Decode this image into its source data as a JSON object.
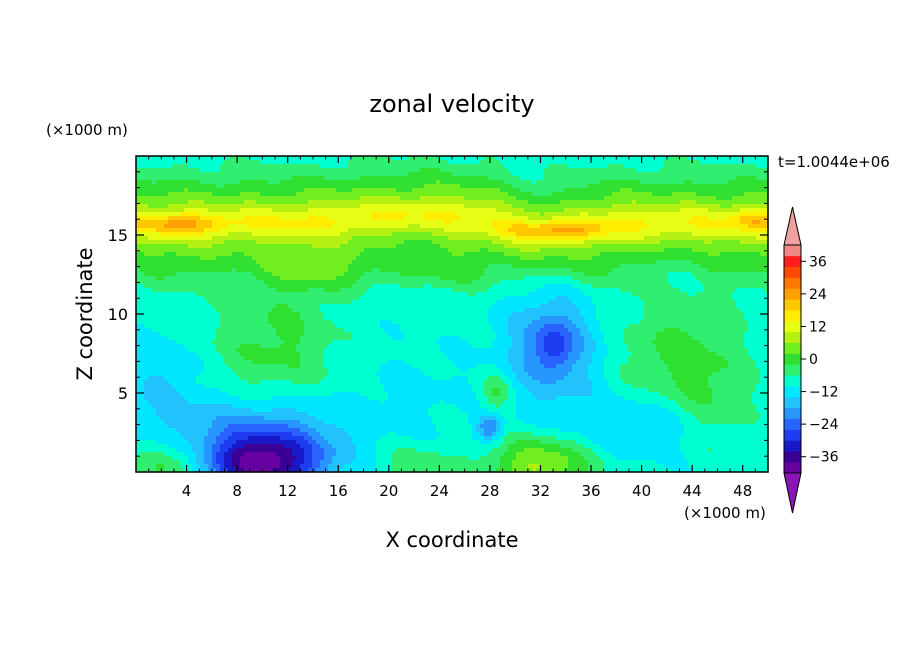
{
  "chart_data": {
    "type": "heatmap",
    "title": "zonal velocity",
    "xlabel": "X coordinate",
    "ylabel": "Z coordinate",
    "x_unit": "(×1000 m)",
    "z_unit": "(×1000 m)",
    "time_label": "t=1.0044e+06",
    "xlim": [
      0,
      50
    ],
    "zlim": [
      0,
      20
    ],
    "x_ticks": [
      "4",
      "8",
      "12",
      "16",
      "20",
      "24",
      "28",
      "32",
      "36",
      "40",
      "44",
      "48"
    ],
    "z_ticks": [
      "5",
      "10",
      "15"
    ],
    "colorbar": {
      "range": [
        -42,
        42
      ],
      "step": 4,
      "labels": [
        "36",
        "24",
        "12",
        "0",
        "−12",
        "−24",
        "−36"
      ],
      "extend": "both",
      "colors": [
        "#6600a0",
        "#3a0096",
        "#1818c8",
        "#1e3cf0",
        "#2a64ff",
        "#2896ff",
        "#22c2ff",
        "#00e6ff",
        "#00ffd0",
        "#30ee70",
        "#30e030",
        "#70ee20",
        "#b4f012",
        "#e6ff14",
        "#ffee00",
        "#ffc800",
        "#ffa000",
        "#ff7800",
        "#ff4a00",
        "#ff1e1e",
        "#f08888"
      ],
      "over_color": "#f0a0a0",
      "under_color": "#8c14b4"
    },
    "grid": false,
    "features": [
      {
        "x": 10,
        "z": 0.5,
        "sx": 4.5,
        "sz": 1.8,
        "value": -27
      },
      {
        "x": 10,
        "z": 2.5,
        "sx": 7,
        "sz": 2.5,
        "value": -12
      },
      {
        "x": 3,
        "z": 0.5,
        "sx": 3,
        "sz": 1.5,
        "value": 10
      },
      {
        "x": 32,
        "z": 0.4,
        "sx": 4,
        "sz": 1.8,
        "value": 16
      },
      {
        "x": 22,
        "z": 0.5,
        "sx": 3,
        "sz": 1.2,
        "value": 6
      },
      {
        "x": 33,
        "z": 8,
        "sx": 3.5,
        "sz": 3.5,
        "value": -13
      },
      {
        "x": 33,
        "z": 8,
        "sx": 1.3,
        "sz": 1.3,
        "value": -8
      },
      {
        "x": 11,
        "z": 8,
        "sx": 5,
        "sz": 4.5,
        "value": 8
      },
      {
        "x": 43,
        "z": 7.5,
        "sx": 5,
        "sz": 4,
        "value": 8
      },
      {
        "x": 46,
        "z": 4,
        "sx": 3,
        "sz": 3,
        "value": 5
      },
      {
        "x": 28.5,
        "z": 5,
        "sx": 1.2,
        "sz": 1.2,
        "value": 8
      },
      {
        "x": 28,
        "z": 2.8,
        "sx": 1,
        "sz": 0.8,
        "value": -14
      },
      {
        "x": 22,
        "z": 5,
        "sx": 5,
        "sz": 2.5,
        "value": -2
      },
      {
        "x": 40,
        "z": 3,
        "sx": 6,
        "sz": 2,
        "value": -6
      },
      {
        "x": 2,
        "z": 6,
        "sx": 3,
        "sz": 3,
        "value": -5
      },
      {
        "x": 18,
        "z": 12.8,
        "sx": 12,
        "sz": 1.3,
        "value": 6
      },
      {
        "x": 3.5,
        "z": 15.7,
        "sx": 3,
        "sz": 0.6,
        "value": 10
      },
      {
        "x": 33,
        "z": 15.3,
        "sx": 4,
        "sz": 0.6,
        "value": 10
      },
      {
        "x": 49,
        "z": 16,
        "sx": 1.5,
        "sz": 0.5,
        "value": 8
      }
    ]
  }
}
